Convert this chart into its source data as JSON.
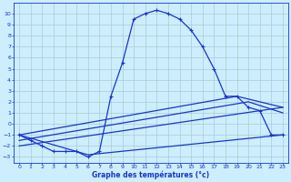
{
  "bg_color": "#cceeff",
  "grid_color": "#aacccc",
  "line_color": "#1a35cc",
  "xlabel": "Graphe des températures (°c)",
  "xlim": [
    -0.5,
    23.5
  ],
  "ylim": [
    -3.5,
    11.0
  ],
  "yticks": [
    -3,
    -2,
    -1,
    0,
    1,
    2,
    3,
    4,
    5,
    6,
    7,
    8,
    9,
    10
  ],
  "xticks": [
    0,
    1,
    2,
    3,
    4,
    5,
    6,
    7,
    8,
    9,
    10,
    11,
    12,
    13,
    14,
    15,
    16,
    17,
    18,
    19,
    20,
    21,
    22,
    23
  ],
  "curve1_x": [
    0,
    1,
    2,
    3,
    4,
    5,
    6,
    7,
    8,
    9,
    10,
    11,
    12,
    13,
    14,
    15,
    16,
    17,
    18,
    19,
    20,
    21,
    22,
    23
  ],
  "curve1_y": [
    -1.0,
    -1.5,
    -2.0,
    -2.5,
    -2.5,
    -2.5,
    -3.0,
    -2.5,
    2.5,
    5.5,
    9.5,
    10.0,
    10.3,
    10.0,
    9.5,
    8.5,
    7.0,
    5.0,
    2.5,
    2.5,
    1.5,
    1.2,
    -1.0,
    -1.0
  ],
  "curve2_x": [
    0,
    6,
    23
  ],
  "curve2_y": [
    -1.0,
    -2.8,
    -1.0
  ],
  "curve3_x": [
    0,
    19,
    23
  ],
  "curve3_y": [
    -1.0,
    2.5,
    1.5
  ],
  "curve4_x": [
    0,
    20,
    23
  ],
  "curve4_y": [
    -1.5,
    2.0,
    1.0
  ],
  "curve5_x": [
    0,
    23
  ],
  "curve5_y": [
    -2.0,
    1.5
  ]
}
